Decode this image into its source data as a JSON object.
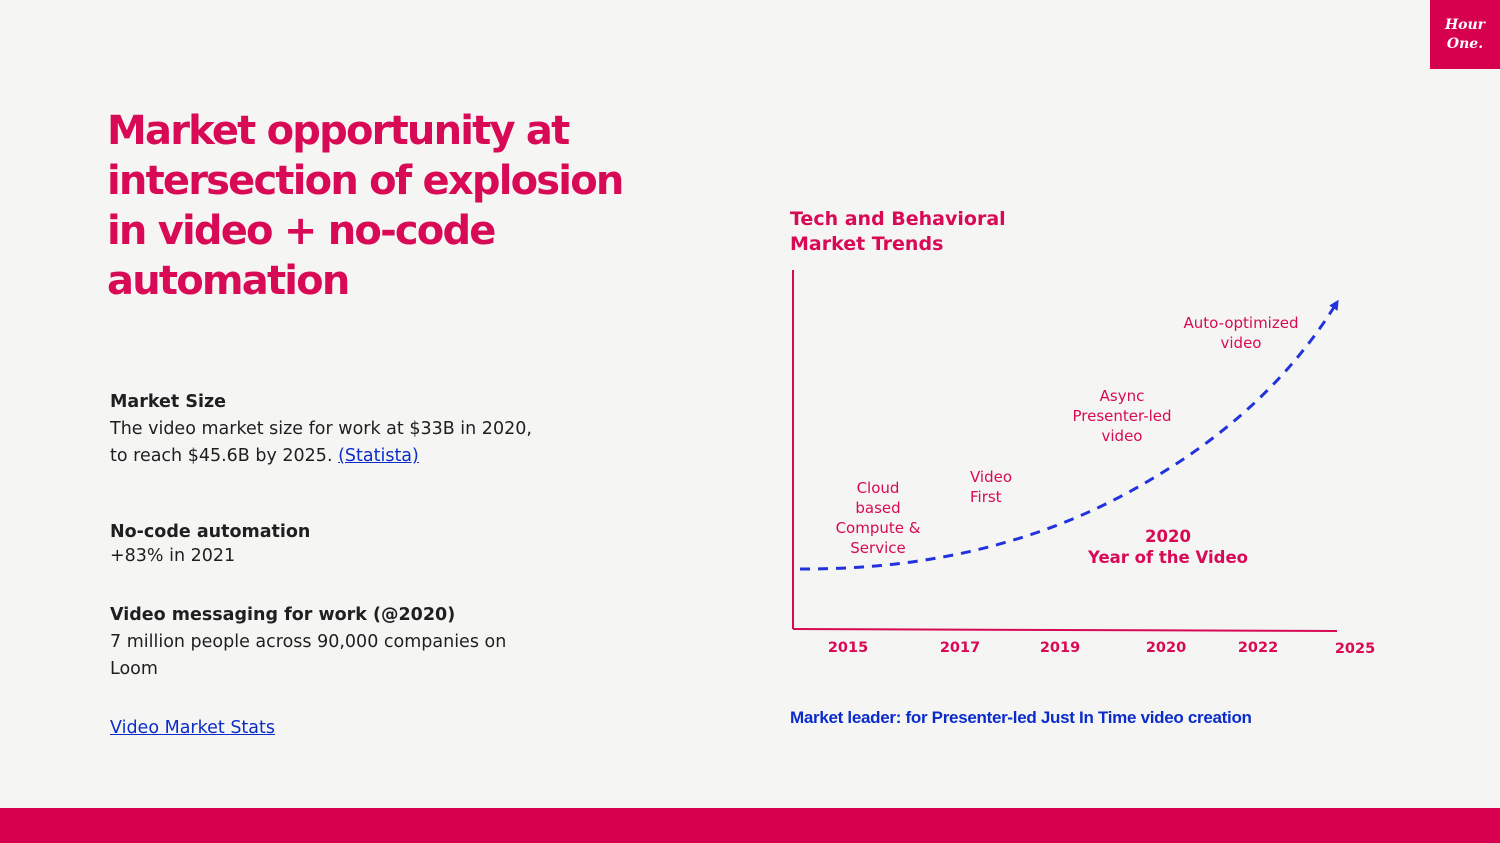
{
  "brand": {
    "logo_line1": "Hour",
    "logo_line2": "One."
  },
  "title": "Market opportunity at intersection of explosion in video + no-code automation",
  "market_size": {
    "heading": "Market Size",
    "line1": "The video market size for work at $33B in 2020,",
    "line2": "to reach $45.6B by 2025. ",
    "source_link": "(Statista)"
  },
  "no_code": {
    "heading": "No-code automation",
    "text": "+83% in 2021"
  },
  "video_messaging": {
    "heading": "Video messaging for work (@2020)",
    "text": "7 million people across 90,000 companies on Loom"
  },
  "stats_link": "Video Market Stats",
  "chart": {
    "title": "Tech and Behavioral Market Trends",
    "milestones": [
      {
        "lines": [
          "Cloud",
          "based",
          "Compute &",
          "Service"
        ]
      },
      {
        "lines": [
          "Video",
          "First"
        ]
      },
      {
        "lines": [
          "Async",
          "Presenter-led",
          "video"
        ]
      },
      {
        "lines": [
          "Auto-optimized",
          "video"
        ]
      }
    ],
    "highlight": {
      "line1": "2020",
      "line2": "Year of the Video"
    },
    "footnote": "Market leader: for Presenter-led Just In Time video  creation"
  },
  "chart_data": {
    "type": "line",
    "categories": [
      "2015",
      "2017",
      "2019",
      "2020",
      "2022",
      "2025"
    ],
    "series": [],
    "trend": "exponential growth (dashed arrow)",
    "colors": {
      "axis": "#d90a55",
      "trend": "#2233dd",
      "labels": "#d90a55"
    }
  }
}
